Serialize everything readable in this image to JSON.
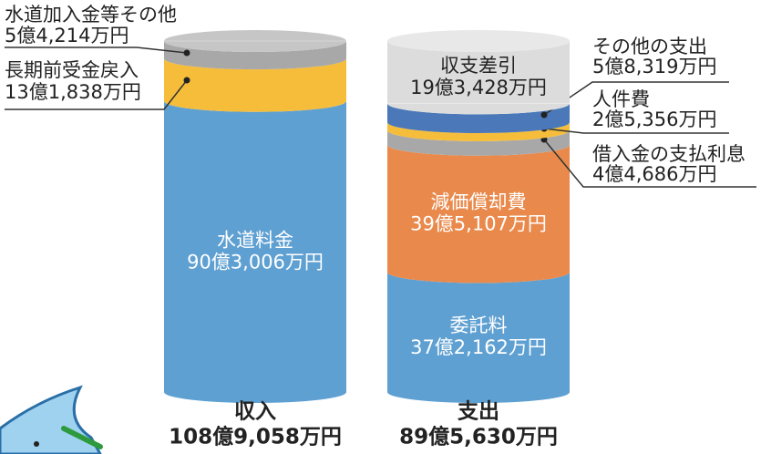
{
  "chart_data": {
    "type": "stacked-cylinder",
    "columns": [
      {
        "name": "収入",
        "total": 1089058,
        "total_label": "108億9,058万円",
        "segments": [
          {
            "name": "水道料金",
            "value": 903006,
            "value_label": "90億3,006万円",
            "color": "#5fa0d2"
          },
          {
            "name": "長期前受金戻入",
            "value": 131838,
            "value_label": "13億1,838万円",
            "color": "#f6bd3b"
          },
          {
            "name": "水道加入金等その他",
            "value": 54214,
            "value_label": "5億4,214万円",
            "color": "#a8a8a8"
          }
        ]
      },
      {
        "name": "支出",
        "total": 895630,
        "total_label": "89億5,630万円",
        "segments": [
          {
            "name": "委託料",
            "value": 372162,
            "value_label": "37億2,162万円",
            "color": "#5fa0d2"
          },
          {
            "name": "減価償却費",
            "value": 395107,
            "value_label": "39億5,107万円",
            "color": "#e98a4c"
          },
          {
            "name": "借入金の支払利息",
            "value": 44686,
            "value_label": "4億4,686万円",
            "color": "#a8a8a8"
          },
          {
            "name": "人件費",
            "value": 25356,
            "value_label": "2億5,356万円",
            "color": "#f6bd3b"
          },
          {
            "name": "その他の支出",
            "value": 58319,
            "value_label": "5億8,319万円",
            "color": "#4a78b8"
          },
          {
            "name": "収支差引",
            "value": 193428,
            "value_label": "19億3,428万円",
            "color": "#dcdcdc"
          }
        ]
      }
    ]
  }
}
